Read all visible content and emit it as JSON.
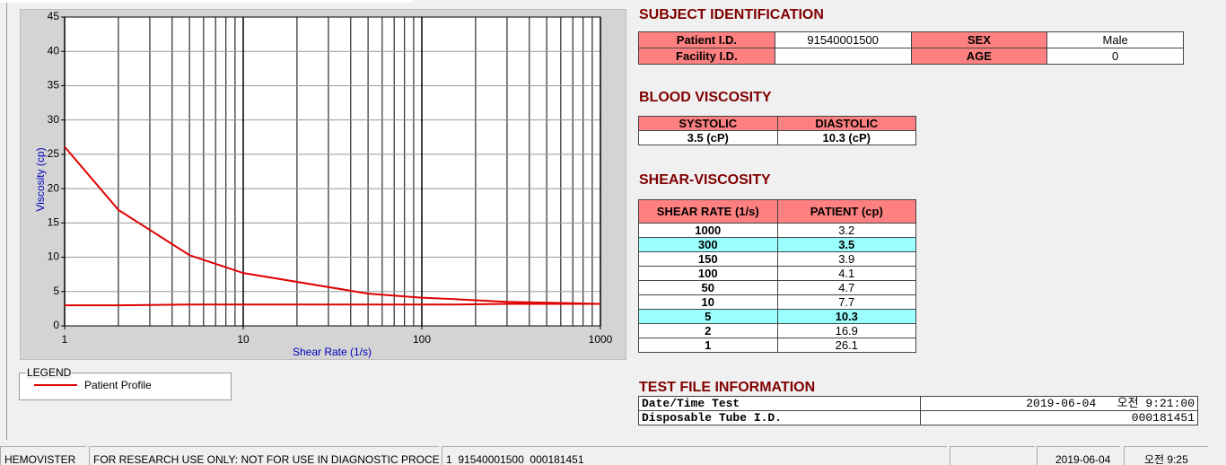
{
  "chart_data": {
    "type": "line",
    "x_label": "Shear Rate (1/s)",
    "y_label": "Viscosity (cp)",
    "x": [
      1,
      2,
      5,
      10,
      50,
      100,
      150,
      300,
      1000
    ],
    "series": [
      {
        "name": "Patient Profile",
        "color": "#e00000",
        "values": [
          26.1,
          16.9,
          10.3,
          7.7,
          4.7,
          4.1,
          3.9,
          3.5,
          3.2
        ]
      },
      {
        "color": "#e00000",
        "values": [
          3.0,
          3.0,
          3.1,
          3.1,
          3.1,
          3.1,
          3.1,
          3.2,
          3.2
        ]
      }
    ],
    "xlim": [
      1,
      1000
    ],
    "xticks": [
      1,
      10,
      100,
      1000
    ],
    "log_x": true,
    "ylim": [
      0,
      45
    ],
    "yticks": [
      0,
      5,
      10,
      15,
      20,
      25,
      30,
      35,
      40,
      45
    ],
    "grid": true,
    "legend_title": "LEGEND"
  },
  "subject": {
    "title": "SUBJECT IDENTIFICATION",
    "patient_id_label": "Patient I.D.",
    "patient_id": "91540001500",
    "sex_label": "SEX",
    "sex": "Male",
    "facility_id_label": "Facility I.D.",
    "age_label": "AGE",
    "age": "0"
  },
  "blood_viscosity": {
    "title": "BLOOD VISCOSITY",
    "headers": [
      "SYSTOLIC",
      "DIASTOLIC"
    ],
    "values": [
      "3.5 (cP)",
      "10.3 (cP)"
    ]
  },
  "shear_viscosity": {
    "title": "SHEAR-VISCOSITY",
    "headers": [
      "SHEAR RATE (1/s)",
      "PATIENT (cp)"
    ],
    "rows": [
      [
        "1000",
        "3.2"
      ],
      [
        "300",
        "3.5"
      ],
      [
        "150",
        "3.9"
      ],
      [
        "100",
        "4.1"
      ],
      [
        "50",
        "4.7"
      ],
      [
        "10",
        "7.7"
      ],
      [
        "5",
        "10.3"
      ],
      [
        "2",
        "16.9"
      ],
      [
        "1",
        "26.1"
      ]
    ],
    "highlight_rows": [
      1,
      6
    ],
    "highlight_color": "#99ffff"
  },
  "test_file": {
    "title": "TEST FILE INFORMATION",
    "date_label": "Date/Time Test",
    "date": "2019-06-04   오전 9:21:00",
    "tube_label": "Disposable Tube I.D.",
    "tube": "000181451"
  },
  "status_bar": [
    "HEMOVISTER",
    "FOR RESEARCH USE ONLY: NOT FOR USE IN DIAGNOSTIC PROCEDURES",
    "1  91540001500  000181451",
    "2019-06-04",
    "오전 9:25"
  ]
}
